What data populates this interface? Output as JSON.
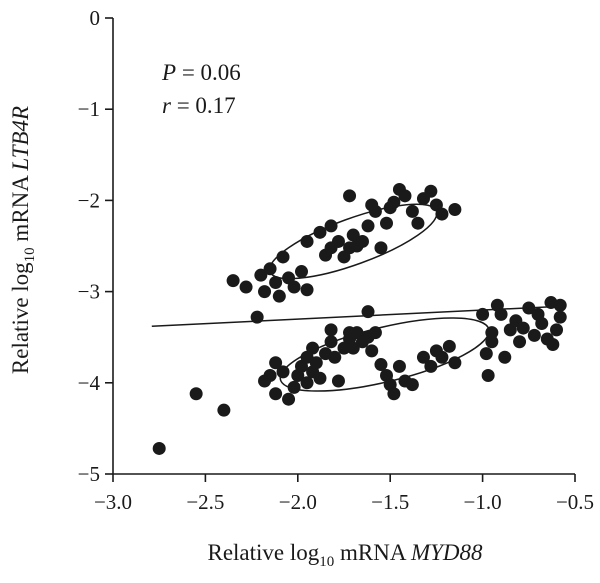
{
  "chart_data": {
    "type": "scatter",
    "xlabel": {
      "prefix": "Relative log",
      "sub": "10",
      "mid": " mRNA ",
      "gene": "MYD88"
    },
    "ylabel": {
      "prefix": "Relative log",
      "sub": "10",
      "mid": " mRNA ",
      "gene": "LTB4R"
    },
    "xlim": [
      -3.0,
      -0.5
    ],
    "ylim": [
      -5,
      0
    ],
    "xticks": [
      -3.0,
      -2.5,
      -2.0,
      -1.5,
      -1.0,
      -0.5
    ],
    "xtick_labels": [
      "−3.0",
      "−2.5",
      "−2.0",
      "−1.5",
      "−1.0",
      "−0.5"
    ],
    "yticks": [
      0,
      -1,
      -2,
      -3,
      -4,
      -5
    ],
    "ytick_labels": [
      "0",
      "−1",
      "−2",
      "−3",
      "−4",
      "−5"
    ],
    "stats": {
      "p_symbol": "P",
      "p_value": " = 0.06",
      "r_symbol": "r",
      "r_value": " = 0.17"
    },
    "regression_line": {
      "x": [
        -2.79,
        -0.57
      ],
      "y": [
        -3.38,
        -3.16
      ]
    },
    "ellipses": [
      {
        "cx": -1.7,
        "cy": -2.45,
        "rx": 0.48,
        "ry": 0.135,
        "angle_deg": -20
      },
      {
        "cx": -1.53,
        "cy": -3.69,
        "rx": 0.58,
        "ry": 0.16,
        "angle_deg": -13.6
      }
    ],
    "points": [
      {
        "x": -2.35,
        "y": -2.88
      },
      {
        "x": -2.28,
        "y": -2.95
      },
      {
        "x": -2.2,
        "y": -2.82
      },
      {
        "x": -2.18,
        "y": -3.0
      },
      {
        "x": -2.15,
        "y": -2.75
      },
      {
        "x": -2.12,
        "y": -2.9
      },
      {
        "x": -2.1,
        "y": -3.05
      },
      {
        "x": -2.08,
        "y": -2.62
      },
      {
        "x": -2.05,
        "y": -2.85
      },
      {
        "x": -2.02,
        "y": -2.95
      },
      {
        "x": -1.98,
        "y": -2.78
      },
      {
        "x": -1.95,
        "y": -2.45
      },
      {
        "x": -1.95,
        "y": -2.98
      },
      {
        "x": -1.88,
        "y": -2.35
      },
      {
        "x": -1.85,
        "y": -2.6
      },
      {
        "x": -1.82,
        "y": -2.52
      },
      {
        "x": -1.82,
        "y": -2.28
      },
      {
        "x": -1.78,
        "y": -2.45
      },
      {
        "x": -1.75,
        "y": -2.62
      },
      {
        "x": -1.72,
        "y": -2.52
      },
      {
        "x": -1.72,
        "y": -1.95
      },
      {
        "x": -1.7,
        "y": -2.38
      },
      {
        "x": -1.68,
        "y": -2.5
      },
      {
        "x": -1.65,
        "y": -2.45
      },
      {
        "x": -1.62,
        "y": -2.28
      },
      {
        "x": -1.6,
        "y": -2.05
      },
      {
        "x": -1.58,
        "y": -2.12
      },
      {
        "x": -1.55,
        "y": -2.52
      },
      {
        "x": -1.52,
        "y": -2.25
      },
      {
        "x": -1.5,
        "y": -2.08
      },
      {
        "x": -1.48,
        "y": -2.02
      },
      {
        "x": -1.45,
        "y": -1.88
      },
      {
        "x": -1.42,
        "y": -1.95
      },
      {
        "x": -1.38,
        "y": -2.12
      },
      {
        "x": -1.35,
        "y": -2.25
      },
      {
        "x": -1.32,
        "y": -1.98
      },
      {
        "x": -1.28,
        "y": -1.9
      },
      {
        "x": -1.25,
        "y": -2.05
      },
      {
        "x": -1.22,
        "y": -2.15
      },
      {
        "x": -1.15,
        "y": -2.1
      },
      {
        "x": -2.75,
        "y": -4.72
      },
      {
        "x": -2.55,
        "y": -4.12
      },
      {
        "x": -2.4,
        "y": -4.3
      },
      {
        "x": -2.22,
        "y": -3.28
      },
      {
        "x": -2.18,
        "y": -3.98
      },
      {
        "x": -2.15,
        "y": -3.92
      },
      {
        "x": -2.12,
        "y": -3.78
      },
      {
        "x": -2.12,
        "y": -4.12
      },
      {
        "x": -2.08,
        "y": -3.88
      },
      {
        "x": -2.05,
        "y": -4.18
      },
      {
        "x": -2.02,
        "y": -4.05
      },
      {
        "x": -2.0,
        "y": -3.92
      },
      {
        "x": -1.98,
        "y": -3.82
      },
      {
        "x": -1.95,
        "y": -3.72
      },
      {
        "x": -1.95,
        "y": -4.0
      },
      {
        "x": -1.92,
        "y": -3.62
      },
      {
        "x": -1.92,
        "y": -3.88
      },
      {
        "x": -1.9,
        "y": -3.78
      },
      {
        "x": -1.88,
        "y": -3.95
      },
      {
        "x": -1.85,
        "y": -3.68
      },
      {
        "x": -1.82,
        "y": -3.55
      },
      {
        "x": -1.82,
        "y": -3.42
      },
      {
        "x": -1.8,
        "y": -3.72
      },
      {
        "x": -1.78,
        "y": -3.98
      },
      {
        "x": -1.75,
        "y": -3.62
      },
      {
        "x": -1.72,
        "y": -3.52
      },
      {
        "x": -1.72,
        "y": -3.45
      },
      {
        "x": -1.7,
        "y": -3.62
      },
      {
        "x": -1.68,
        "y": -3.45
      },
      {
        "x": -1.65,
        "y": -3.55
      },
      {
        "x": -1.62,
        "y": -3.5
      },
      {
        "x": -1.62,
        "y": -3.22
      },
      {
        "x": -1.6,
        "y": -3.65
      },
      {
        "x": -1.58,
        "y": -3.45
      },
      {
        "x": -1.55,
        "y": -3.8
      },
      {
        "x": -1.52,
        "y": -3.92
      },
      {
        "x": -1.5,
        "y": -4.02
      },
      {
        "x": -1.48,
        "y": -4.12
      },
      {
        "x": -1.45,
        "y": -3.82
      },
      {
        "x": -1.42,
        "y": -3.98
      },
      {
        "x": -1.38,
        "y": -4.02
      },
      {
        "x": -1.32,
        "y": -3.72
      },
      {
        "x": -1.28,
        "y": -3.82
      },
      {
        "x": -1.25,
        "y": -3.65
      },
      {
        "x": -1.22,
        "y": -3.72
      },
      {
        "x": -1.18,
        "y": -3.6
      },
      {
        "x": -1.15,
        "y": -3.78
      },
      {
        "x": -1.0,
        "y": -3.25
      },
      {
        "x": -0.98,
        "y": -3.68
      },
      {
        "x": -0.97,
        "y": -3.92
      },
      {
        "x": -0.95,
        "y": -3.45
      },
      {
        "x": -0.95,
        "y": -3.55
      },
      {
        "x": -0.92,
        "y": -3.15
      },
      {
        "x": -0.9,
        "y": -3.25
      },
      {
        "x": -0.88,
        "y": -3.72
      },
      {
        "x": -0.85,
        "y": -3.42
      },
      {
        "x": -0.82,
        "y": -3.32
      },
      {
        "x": -0.8,
        "y": -3.55
      },
      {
        "x": -0.78,
        "y": -3.4
      },
      {
        "x": -0.75,
        "y": -3.18
      },
      {
        "x": -0.72,
        "y": -3.48
      },
      {
        "x": -0.7,
        "y": -3.25
      },
      {
        "x": -0.68,
        "y": -3.35
      },
      {
        "x": -0.65,
        "y": -3.52
      },
      {
        "x": -0.63,
        "y": -3.12
      },
      {
        "x": -0.62,
        "y": -3.58
      },
      {
        "x": -0.6,
        "y": -3.42
      },
      {
        "x": -0.58,
        "y": -3.15
      },
      {
        "x": -0.58,
        "y": -3.28
      }
    ]
  }
}
